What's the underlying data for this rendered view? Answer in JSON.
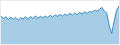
{
  "chart_data": {
    "type": "area",
    "values": [
      55,
      48,
      53,
      45,
      52,
      46,
      51,
      44,
      50,
      47,
      53,
      46,
      54,
      48,
      55,
      49,
      54,
      50,
      55,
      51,
      57,
      52,
      58,
      54,
      59,
      55,
      60,
      56,
      62,
      57,
      63,
      58,
      65,
      60,
      66,
      62,
      67,
      65,
      70,
      68,
      72,
      78,
      68,
      63,
      30,
      8,
      40,
      70,
      82
    ],
    "color": "#3b8fc7",
    "xlim": [
      0,
      48
    ],
    "ylim": [
      -20,
      95
    ],
    "tick_labels": false,
    "grid": false
  }
}
